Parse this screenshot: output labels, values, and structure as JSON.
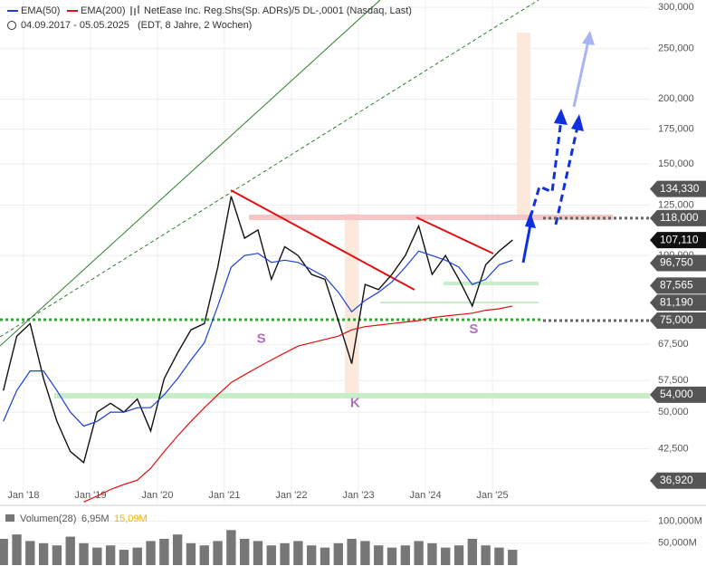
{
  "chart_data": [
    {
      "type": "line",
      "title": "NetEase Inc. Reg.Shs(Sp. ADRs)/5 DL-,0001 (Nasdaq, Last)",
      "subtitle": "04.09.2017 - 05.05.2025",
      "note": "(EDT, 8 Jahre, 2 Wochen)",
      "log_scale": true,
      "xlim": [
        2017.65,
        2027.35
      ],
      "ylim": [
        33.5,
        310
      ],
      "xticks": [
        {
          "value": 2018,
          "label": "Jan '18"
        },
        {
          "value": 2019,
          "label": "Jan '19"
        },
        {
          "value": 2020,
          "label": "Jan '20"
        },
        {
          "value": 2021,
          "label": "Jan '21"
        },
        {
          "value": 2022,
          "label": "Jan '22"
        },
        {
          "value": 2023,
          "label": "Jan '23"
        },
        {
          "value": 2024,
          "label": "Jan '24"
        },
        {
          "value": 2025,
          "label": "Jan '25"
        }
      ],
      "yticks": [
        {
          "value": 300,
          "label": "300,000"
        },
        {
          "value": 250,
          "label": "250,000"
        },
        {
          "value": 200,
          "label": "200,000"
        },
        {
          "value": 175,
          "label": "175,000"
        },
        {
          "value": 150,
          "label": "150,000"
        },
        {
          "value": 125,
          "label": "125,000"
        },
        {
          "value": 100,
          "label": "100,000"
        },
        {
          "value": 67.5,
          "label": "67,500"
        },
        {
          "value": 57.5,
          "label": "57,500"
        },
        {
          "value": 50,
          "label": "50,000"
        },
        {
          "value": 42.5,
          "label": "42,500"
        }
      ],
      "x": [
        2017.7,
        2017.9,
        2018.1,
        2018.3,
        2018.5,
        2018.7,
        2018.9,
        2019.1,
        2019.3,
        2019.5,
        2019.7,
        2019.9,
        2020.1,
        2020.3,
        2020.5,
        2020.7,
        2020.9,
        2021.1,
        2021.3,
        2021.5,
        2021.7,
        2021.9,
        2022.1,
        2022.3,
        2022.5,
        2022.7,
        2022.9,
        2023.1,
        2023.3,
        2023.5,
        2023.7,
        2023.9,
        2024.1,
        2024.3,
        2024.5,
        2024.7,
        2024.9,
        2025.1,
        2025.3
      ],
      "series": [
        {
          "name": "NetEase Inc. Reg.Shs(Sp. ADRs)/5 DL-,0001 (Nasdaq, Last)",
          "color": "#111111",
          "values": [
            55,
            70,
            74,
            58,
            48,
            42,
            40,
            50,
            52,
            50,
            53,
            46,
            58,
            65,
            72,
            74,
            95,
            130,
            108,
            112,
            90,
            104,
            100,
            92,
            90,
            75,
            62,
            88,
            86,
            92,
            100,
            114,
            92,
            100,
            90,
            80,
            96,
            102,
            107.11
          ]
        },
        {
          "name": "EMA(50)",
          "color": "#1a3fd6",
          "values": [
            48,
            55,
            60,
            60,
            55,
            50,
            47,
            48,
            50,
            50,
            51,
            51,
            54,
            58,
            63,
            68,
            80,
            95,
            100,
            101,
            97,
            98,
            97,
            94,
            91,
            85,
            78,
            82,
            85,
            89,
            95,
            102,
            100,
            98,
            95,
            88,
            90,
            96,
            98
          ]
        },
        {
          "name": "EMA(200)",
          "color": "#e01010",
          "values": [
            null,
            null,
            null,
            null,
            null,
            null,
            33.6,
            34.5,
            35.5,
            36.3,
            37,
            39,
            42,
            45,
            48,
            51,
            54,
            57,
            59,
            61,
            63,
            65,
            67,
            68,
            69,
            70,
            72,
            73,
            73.5,
            74,
            74.5,
            75,
            76,
            76.5,
            77,
            77.5,
            78.5,
            79,
            80
          ]
        }
      ],
      "levels": [
        {
          "value": 134.33,
          "label": "134,330",
          "color": "#555555"
        },
        {
          "value": 118,
          "label": "118,000",
          "color": "#555555",
          "dotted": true
        },
        {
          "value": 107.11,
          "label": "107,110",
          "color": "#111111"
        },
        {
          "value": 96.75,
          "label": "96,750",
          "color": "#555555"
        },
        {
          "value": 87.565,
          "label": "87,565",
          "color": "#555555"
        },
        {
          "value": 81.19,
          "label": "81,190",
          "color": "#555555"
        },
        {
          "value": 75,
          "label": "75,000",
          "color": "#555555",
          "dotted": true
        },
        {
          "value": 54,
          "label": "54,000",
          "color": "#555555"
        },
        {
          "value": 36.92,
          "label": "36,920",
          "color": "#555555"
        }
      ],
      "annotations": [
        {
          "text": "S",
          "x": 2021.55,
          "y": 69
        },
        {
          "text": "K",
          "x": 2022.95,
          "y": 52
        },
        {
          "text": "S",
          "x": 2024.72,
          "y": 72
        }
      ]
    },
    {
      "type": "bar",
      "title": "Volumen(28)",
      "legend_values": [
        "6,95M",
        "15,09M"
      ],
      "color": "#777777",
      "xlim": [
        2017.65,
        2027.35
      ],
      "ylim": [
        0,
        120
      ],
      "yticks": [
        {
          "value": 100,
          "label": "100,000M"
        },
        {
          "value": 50,
          "label": "50,000M"
        }
      ],
      "x": [
        2017.7,
        2017.9,
        2018.1,
        2018.3,
        2018.5,
        2018.7,
        2018.9,
        2019.1,
        2019.3,
        2019.5,
        2019.7,
        2019.9,
        2020.1,
        2020.3,
        2020.5,
        2020.7,
        2020.9,
        2021.1,
        2021.3,
        2021.5,
        2021.7,
        2021.9,
        2022.1,
        2022.3,
        2022.5,
        2022.7,
        2022.9,
        2023.1,
        2023.3,
        2023.5,
        2023.7,
        2023.9,
        2024.1,
        2024.3,
        2024.5,
        2024.7,
        2024.9,
        2025.1,
        2025.3
      ],
      "values": [
        60,
        70,
        55,
        50,
        45,
        65,
        50,
        40,
        45,
        35,
        40,
        55,
        60,
        70,
        50,
        45,
        55,
        80,
        60,
        55,
        45,
        50,
        55,
        45,
        40,
        50,
        60,
        55,
        45,
        40,
        45,
        55,
        50,
        40,
        45,
        60,
        45,
        40,
        35
      ]
    }
  ]
}
